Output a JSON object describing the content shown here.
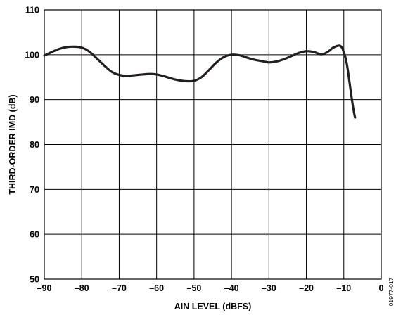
{
  "chart_data": {
    "type": "line",
    "title": "",
    "xlabel": "AIN LEVEL (dBFS)",
    "ylabel": "THIRD-ORDER IMD (dB)",
    "xlim": [
      -90,
      0
    ],
    "ylim": [
      50,
      110
    ],
    "xticks": [
      -90,
      -80,
      -70,
      -60,
      -50,
      -40,
      -30,
      -20,
      -10,
      0
    ],
    "xtick_labels": [
      "–90",
      "–80",
      "–70",
      "–60",
      "–50",
      "–40",
      "–30",
      "–20",
      "–10",
      "0"
    ],
    "yticks": [
      50,
      60,
      70,
      80,
      90,
      100,
      110
    ],
    "ytick_labels": [
      "50",
      "60",
      "70",
      "80",
      "90",
      "100",
      "110"
    ],
    "grid": true,
    "line_color": "#231f20",
    "series": [
      {
        "x": [
          -90,
          -88,
          -86,
          -84,
          -82,
          -80,
          -78,
          -76,
          -74,
          -72,
          -70,
          -68,
          -65,
          -62,
          -60,
          -58,
          -56,
          -54,
          -52,
          -50,
          -48,
          -46,
          -44,
          -42,
          -40,
          -38,
          -36,
          -34,
          -32,
          -30,
          -28,
          -26,
          -24,
          -22,
          -20,
          -18,
          -17,
          -16,
          -15,
          -14,
          -13,
          -12,
          -11.5,
          -11,
          -10.5,
          -10,
          -9.5,
          -9,
          -8.5,
          -8,
          -7.5,
          -7
        ],
        "y": [
          99.8,
          100.6,
          101.3,
          101.7,
          101.8,
          101.6,
          100.7,
          99.2,
          97.6,
          96.2,
          95.5,
          95.3,
          95.5,
          95.7,
          95.6,
          95.2,
          94.7,
          94.3,
          94.1,
          94.2,
          95.0,
          96.6,
          98.3,
          99.5,
          100.0,
          99.9,
          99.4,
          98.9,
          98.6,
          98.3,
          98.5,
          99.0,
          99.7,
          100.4,
          100.8,
          100.6,
          100.3,
          100.1,
          100.3,
          100.8,
          101.5,
          101.9,
          102.0,
          102.0,
          101.6,
          100.6,
          99.2,
          97.0,
          94.0,
          91.0,
          88.2,
          86.0
        ]
      }
    ],
    "figure_id": "01977-017"
  }
}
